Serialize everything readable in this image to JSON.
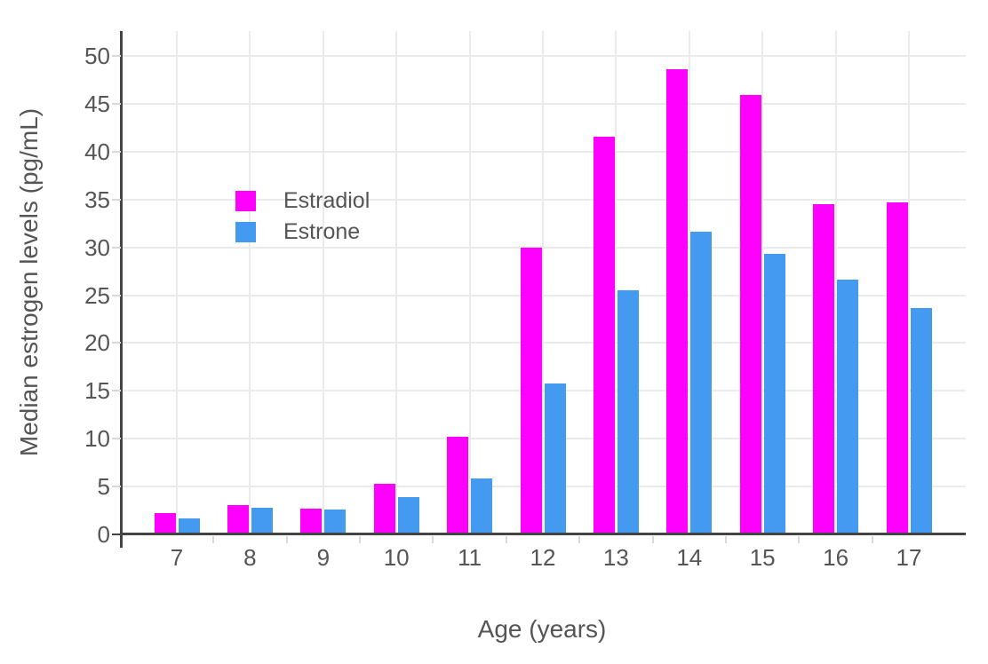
{
  "chart_data": {
    "type": "bar",
    "title": "",
    "xlabel": "Age (years)",
    "ylabel": "Median estrogen levels (pg/mL)",
    "categories": [
      "7",
      "8",
      "9",
      "10",
      "11",
      "12",
      "13",
      "14",
      "15",
      "16",
      "17"
    ],
    "series": [
      {
        "name": "Estradiol",
        "color": "#FF00FF",
        "values": [
          2.2,
          3.1,
          2.7,
          5.3,
          10.2,
          30.0,
          41.6,
          48.6,
          45.9,
          34.5,
          34.7
        ]
      },
      {
        "name": "Estrone",
        "color": "#4499F0",
        "values": [
          1.7,
          2.8,
          2.6,
          3.9,
          5.8,
          15.8,
          25.5,
          31.6,
          29.3,
          26.6,
          23.7
        ]
      }
    ],
    "yticks": [
      0,
      5,
      10,
      15,
      20,
      25,
      30,
      35,
      40,
      45,
      50
    ],
    "ylim": [
      0,
      52.6
    ],
    "grid": true,
    "legend_position": "inside-top-left",
    "colors": {
      "background": "#FFFFFF",
      "text": "#555555",
      "grid": "#EBEBEB",
      "axis": "#444444",
      "tick": "#D9D9D9"
    }
  }
}
